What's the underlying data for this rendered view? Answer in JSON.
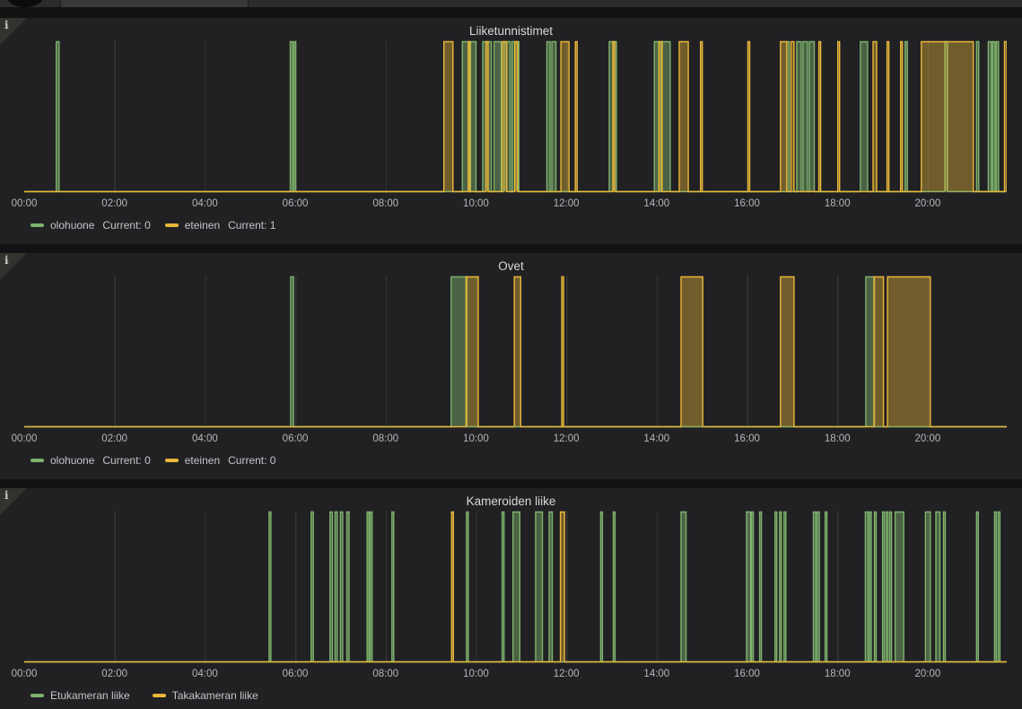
{
  "colors": {
    "green": "#7EB26D",
    "yellow": "#EAB839",
    "panel_bg": "#212124",
    "page_bg": "#121214",
    "grid": "#353538"
  },
  "panels": [
    {
      "title": "Liiketunnistimet",
      "legend": [
        {
          "label": "olohuone",
          "current": "Current: 0",
          "color": "#7EB26D"
        },
        {
          "label": "eteinen",
          "current": "Current: 1",
          "color": "#EAB839"
        }
      ]
    },
    {
      "title": "Ovet",
      "legend": [
        {
          "label": "olohuone",
          "current": "Current: 0",
          "color": "#7EB26D"
        },
        {
          "label": "eteinen",
          "current": "Current: 0",
          "color": "#EAB839"
        }
      ]
    },
    {
      "title": "Kameroiden liike",
      "legend": [
        {
          "label": "Etukameran liike",
          "current": "",
          "color": "#7EB26D"
        },
        {
          "label": "Takakameran liike",
          "current": "",
          "color": "#EAB839"
        }
      ]
    }
  ],
  "chart_data": [
    {
      "type": "area",
      "title": "Liiketunnistimet",
      "x_unit": "hours",
      "x_range": [
        0,
        21.75
      ],
      "y_range": [
        0,
        1
      ],
      "ticks_hours": [
        0,
        2,
        4,
        6,
        8,
        10,
        12,
        14,
        16,
        18,
        20
      ],
      "x_ticks": [
        "00:00",
        "02:00",
        "04:00",
        "06:00",
        "08:00",
        "10:00",
        "12:00",
        "14:00",
        "16:00",
        "18:00",
        "20:00"
      ],
      "series": [
        {
          "name": "olohuone",
          "color": "#7EB26D",
          "fill_opacity": 0.45,
          "pulses": [
            [
              0.71,
              0.77
            ],
            [
              5.89,
              5.94
            ],
            [
              5.97,
              6.01
            ],
            [
              9.7,
              9.84
            ],
            [
              9.88,
              10.0
            ],
            [
              10.15,
              10.34
            ],
            [
              10.4,
              10.56
            ],
            [
              10.62,
              10.76
            ],
            [
              10.8,
              10.95
            ],
            [
              11.57,
              11.64
            ],
            [
              11.68,
              11.77
            ],
            [
              12.95,
              13.11
            ],
            [
              13.95,
              14.06
            ],
            [
              14.1,
              14.3
            ],
            [
              16.88,
              16.93
            ],
            [
              17.1,
              17.2
            ],
            [
              17.24,
              17.34
            ],
            [
              17.38,
              17.49
            ],
            [
              18.51,
              18.67
            ],
            [
              19.5,
              19.55
            ],
            [
              20.38,
              20.44
            ],
            [
              21.08,
              21.13
            ],
            [
              21.34,
              21.41
            ],
            [
              21.44,
              21.49
            ],
            [
              21.52,
              21.57
            ]
          ]
        },
        {
          "name": "eteinen",
          "color": "#EAB839",
          "fill_opacity": 0.4,
          "pulses": [
            [
              9.29,
              9.49
            ],
            [
              9.83,
              9.87
            ],
            [
              10.22,
              10.27
            ],
            [
              10.58,
              10.68
            ],
            [
              10.86,
              10.92
            ],
            [
              11.88,
              12.06
            ],
            [
              12.2,
              12.24
            ],
            [
              13.03,
              13.07
            ],
            [
              14.05,
              14.12
            ],
            [
              14.5,
              14.7
            ],
            [
              14.97,
              15.01
            ],
            [
              16.02,
              16.06
            ],
            [
              16.74,
              16.88
            ],
            [
              16.97,
              17.04
            ],
            [
              17.59,
              17.63
            ],
            [
              18.01,
              18.05
            ],
            [
              18.79,
              18.87
            ],
            [
              19.1,
              19.14
            ],
            [
              19.4,
              19.44
            ],
            [
              19.86,
              21.01
            ],
            [
              21.7,
              21.75
            ]
          ]
        }
      ]
    },
    {
      "type": "area",
      "title": "Ovet",
      "x_unit": "hours",
      "x_range": [
        0,
        21.75
      ],
      "y_range": [
        0,
        1
      ],
      "ticks_hours": [
        0,
        2,
        4,
        6,
        8,
        10,
        12,
        14,
        16,
        18,
        20
      ],
      "x_ticks": [
        "00:00",
        "02:00",
        "04:00",
        "06:00",
        "08:00",
        "10:00",
        "12:00",
        "14:00",
        "16:00",
        "18:00",
        "20:00"
      ],
      "series": [
        {
          "name": "olohuone",
          "color": "#7EB26D",
          "fill_opacity": 0.45,
          "pulses": [
            [
              5.9,
              5.96
            ],
            [
              9.45,
              9.8
            ],
            [
              18.63,
              18.82
            ]
          ]
        },
        {
          "name": "eteinen",
          "color": "#EAB839",
          "fill_opacity": 0.4,
          "pulses": [
            [
              9.78,
              10.05
            ],
            [
              10.85,
              10.99
            ],
            [
              11.9,
              11.94
            ],
            [
              14.54,
              15.02
            ],
            [
              16.74,
              17.04
            ],
            [
              18.81,
              19.02
            ],
            [
              19.11,
              20.06
            ]
          ]
        }
      ]
    },
    {
      "type": "area",
      "title": "Kameroiden liike",
      "x_unit": "hours",
      "x_range": [
        0,
        21.75
      ],
      "y_range": [
        0,
        1
      ],
      "ticks_hours": [
        0,
        2,
        4,
        6,
        8,
        10,
        12,
        14,
        16,
        18,
        20
      ],
      "x_ticks": [
        "00:00",
        "02:00",
        "04:00",
        "06:00",
        "08:00",
        "10:00",
        "12:00",
        "14:00",
        "16:00",
        "18:00",
        "20:00"
      ],
      "series": [
        {
          "name": "Etukameran liike",
          "color": "#7EB26D",
          "fill_opacity": 0.45,
          "pulses": [
            [
              5.42,
              5.46
            ],
            [
              6.35,
              6.4
            ],
            [
              6.77,
              6.82
            ],
            [
              6.88,
              6.93
            ],
            [
              7.0,
              7.05
            ],
            [
              7.14,
              7.19
            ],
            [
              7.59,
              7.63
            ],
            [
              7.66,
              7.7
            ],
            [
              8.14,
              8.18
            ],
            [
              9.79,
              9.83
            ],
            [
              10.58,
              10.62
            ],
            [
              10.82,
              10.97
            ],
            [
              11.32,
              11.47
            ],
            [
              11.62,
              11.69
            ],
            [
              12.76,
              12.8
            ],
            [
              13.04,
              13.08
            ],
            [
              14.54,
              14.65
            ],
            [
              15.99,
              16.08
            ],
            [
              16.1,
              16.14
            ],
            [
              16.28,
              16.32
            ],
            [
              16.62,
              16.66
            ],
            [
              16.72,
              16.76
            ],
            [
              16.82,
              16.86
            ],
            [
              17.47,
              17.52
            ],
            [
              17.55,
              17.6
            ],
            [
              17.73,
              17.77
            ],
            [
              18.62,
              18.68
            ],
            [
              18.71,
              18.75
            ],
            [
              18.82,
              18.86
            ],
            [
              19.0,
              19.04
            ],
            [
              19.08,
              19.12
            ],
            [
              19.16,
              19.2
            ],
            [
              19.28,
              19.47
            ],
            [
              19.95,
              20.06
            ],
            [
              20.18,
              20.27
            ],
            [
              20.35,
              20.39
            ],
            [
              21.08,
              21.12
            ],
            [
              21.48,
              21.52
            ],
            [
              21.56,
              21.6
            ]
          ]
        },
        {
          "name": "Takakameran liike",
          "color": "#EAB839",
          "fill_opacity": 0.4,
          "pulses": [
            [
              9.46,
              9.5
            ],
            [
              11.87,
              11.96
            ]
          ]
        }
      ]
    }
  ]
}
